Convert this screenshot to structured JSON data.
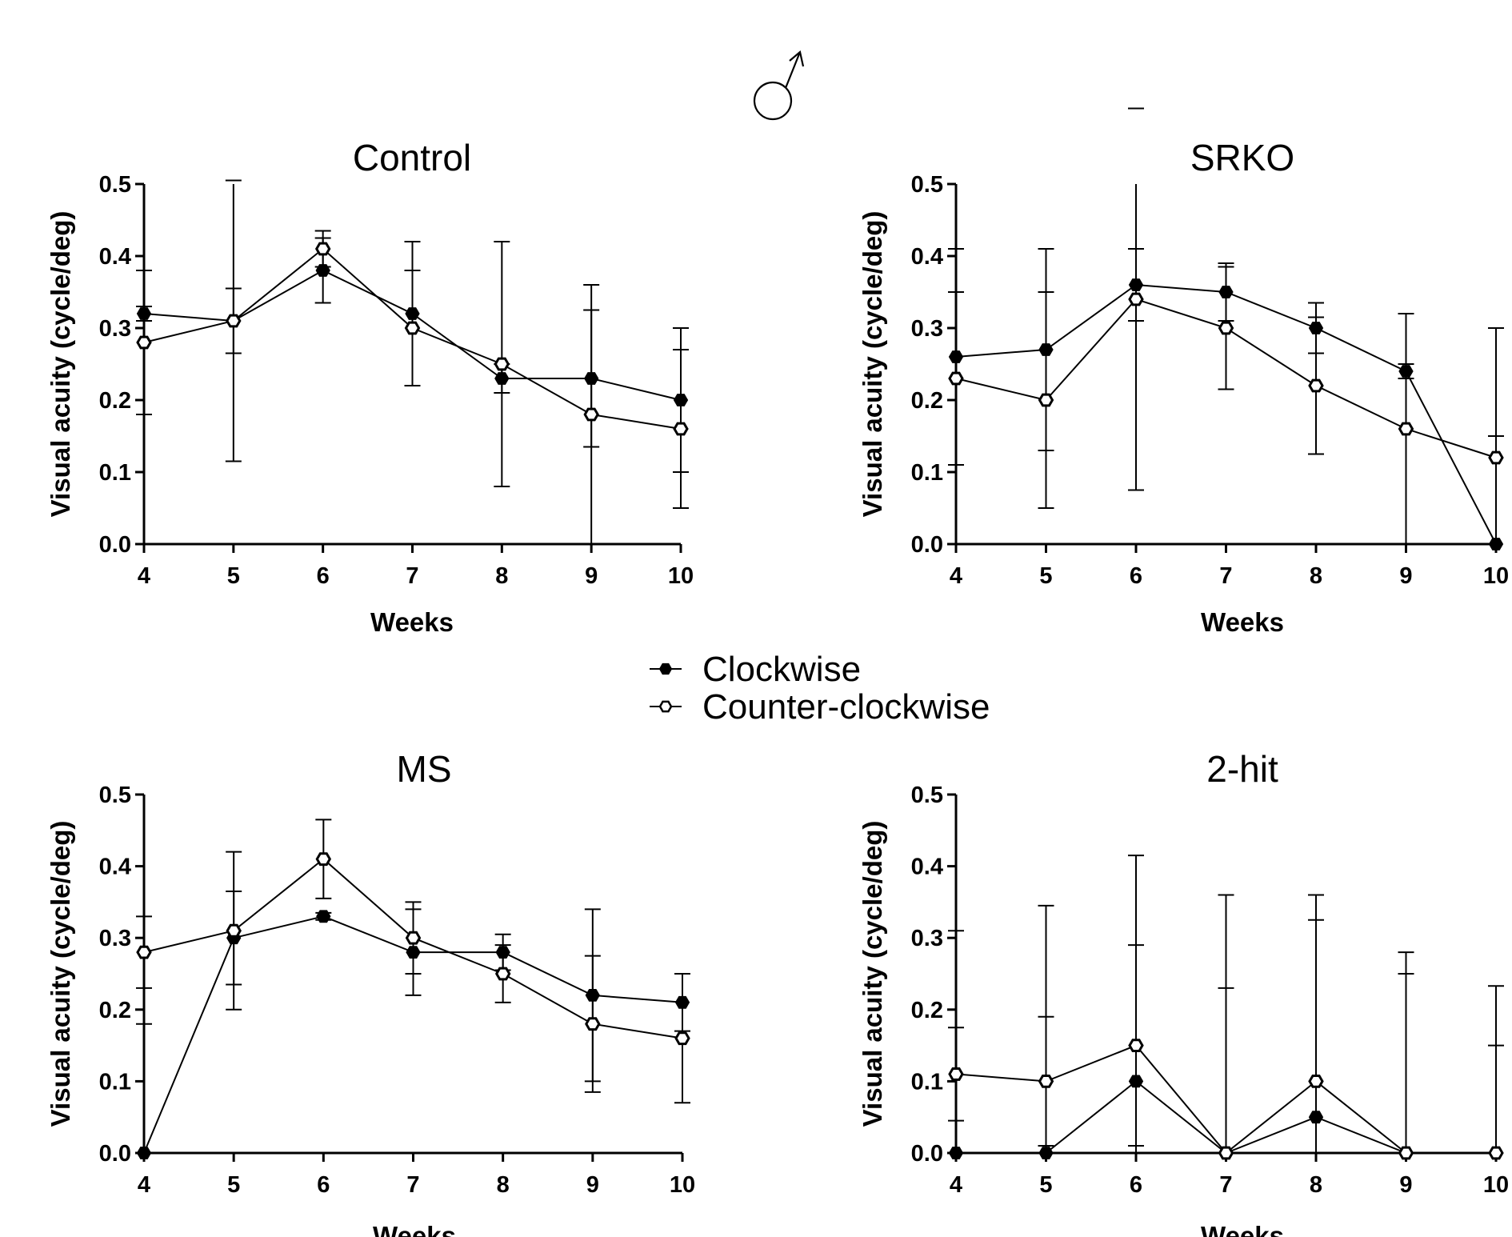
{
  "header": {
    "symbol": "♂"
  },
  "legend": {
    "clockwise": "Clockwise",
    "counter_clockwise": "Counter-clockwise"
  },
  "colors": {
    "ink": "#000000",
    "background": "#ffffff"
  },
  "chart_data": [
    {
      "type": "line",
      "title": "Control",
      "xlabel": "Weeks",
      "ylabel": "Visual acuity (cycle/deg)",
      "x": [
        4,
        5,
        6,
        7,
        8,
        9,
        10
      ],
      "x_ticks": [
        "4",
        "5",
        "6",
        "7",
        "8",
        "9",
        "10"
      ],
      "y_ticks": [
        "0.0",
        "0.1",
        "0.2",
        "0.3",
        "0.4",
        "0.5"
      ],
      "ylim": [
        0,
        0.5
      ],
      "series": [
        {
          "name": "Clockwise",
          "marker": "filled-hexagon",
          "values": [
            0.32,
            0.31,
            0.38,
            0.32,
            0.23,
            0.23,
            0.2
          ],
          "err": [
            0.01,
            0.045,
            0.045,
            0.1,
            0.02,
            0.095,
            0.1
          ]
        },
        {
          "name": "Counter-clockwise",
          "marker": "open-hexagon",
          "values": [
            0.28,
            0.31,
            0.41,
            0.3,
            0.25,
            0.18,
            0.16
          ],
          "err": [
            0.1,
            0.195,
            0.025,
            0.08,
            0.17,
            0.18,
            0.11
          ]
        }
      ]
    },
    {
      "type": "line",
      "title": "SRKO",
      "xlabel": "Weeks",
      "ylabel": "Visual acuity (cycle/deg)",
      "x": [
        4,
        5,
        6,
        7,
        8,
        9,
        10
      ],
      "x_ticks": [
        "4",
        "5",
        "6",
        "7",
        "8",
        "9",
        "10"
      ],
      "y_ticks": [
        "0.0",
        "0.1",
        "0.2",
        "0.3",
        "0.4",
        "0.5"
      ],
      "ylim": [
        0,
        0.5
      ],
      "series": [
        {
          "name": "Clockwise",
          "marker": "filled-hexagon",
          "values": [
            0.26,
            0.27,
            0.36,
            0.35,
            0.3,
            0.24,
            0.0
          ],
          "err": [
            0.15,
            0.14,
            0.05,
            0.04,
            0.035,
            0.01,
            0.15
          ]
        },
        {
          "name": "Counter-clockwise",
          "marker": "open-hexagon",
          "values": [
            0.23,
            0.2,
            0.34,
            0.3,
            0.22,
            0.16,
            0.12
          ],
          "err": [
            0.12,
            0.15,
            0.265,
            0.085,
            0.095,
            0.16,
            0.18
          ]
        }
      ]
    },
    {
      "type": "line",
      "title": "MS",
      "xlabel": "Weeks",
      "ylabel": "Visual acuity (cycle/deg)",
      "x": [
        4,
        5,
        6,
        7,
        8,
        9,
        10
      ],
      "x_ticks": [
        "4",
        "5",
        "6",
        "7",
        "8",
        "9",
        "10"
      ],
      "y_ticks": [
        "0.0",
        "0.1",
        "0.2",
        "0.3",
        "0.4",
        "0.5"
      ],
      "ylim": [
        0,
        0.5
      ],
      "series": [
        {
          "name": "Clockwise",
          "marker": "filled-hexagon",
          "values": [
            0.0,
            0.3,
            0.33,
            0.28,
            0.28,
            0.22,
            0.21
          ],
          "err": [
            0.18,
            0.065,
            0.005,
            0.06,
            0.025,
            0.12,
            0.04
          ]
        },
        {
          "name": "Counter-clockwise",
          "marker": "open-hexagon",
          "values": [
            0.28,
            0.31,
            0.41,
            0.3,
            0.25,
            0.18,
            0.16
          ],
          "err": [
            0.05,
            0.11,
            0.055,
            0.05,
            0.04,
            0.095,
            0.09
          ]
        }
      ]
    },
    {
      "type": "line",
      "title": "2-hit",
      "xlabel": "Weeks",
      "ylabel": "Visual acuity (cycle/deg)",
      "x": [
        4,
        5,
        6,
        7,
        8,
        9,
        10
      ],
      "x_ticks": [
        "4",
        "5",
        "6",
        "7",
        "8",
        "9",
        "10"
      ],
      "y_ticks": [
        "0.0",
        "0.1",
        "0.2",
        "0.3",
        "0.4",
        "0.5"
      ],
      "ylim": [
        0,
        0.5
      ],
      "series": [
        {
          "name": "Clockwise",
          "marker": "filled-hexagon",
          "values": [
            0.0,
            0.0,
            0.1,
            0.0,
            0.05,
            0.0,
            0.0
          ],
          "err": [
            0.31,
            0.345,
            0.315,
            0.23,
            0.275,
            0.25,
            0.15
          ]
        },
        {
          "name": "Counter-clockwise",
          "marker": "open-hexagon",
          "values": [
            0.11,
            0.1,
            0.15,
            0.0,
            0.1,
            0.0,
            0.0
          ],
          "err": [
            0.065,
            0.09,
            0.14,
            0.36,
            0.26,
            0.28,
            0.233
          ]
        }
      ]
    }
  ]
}
